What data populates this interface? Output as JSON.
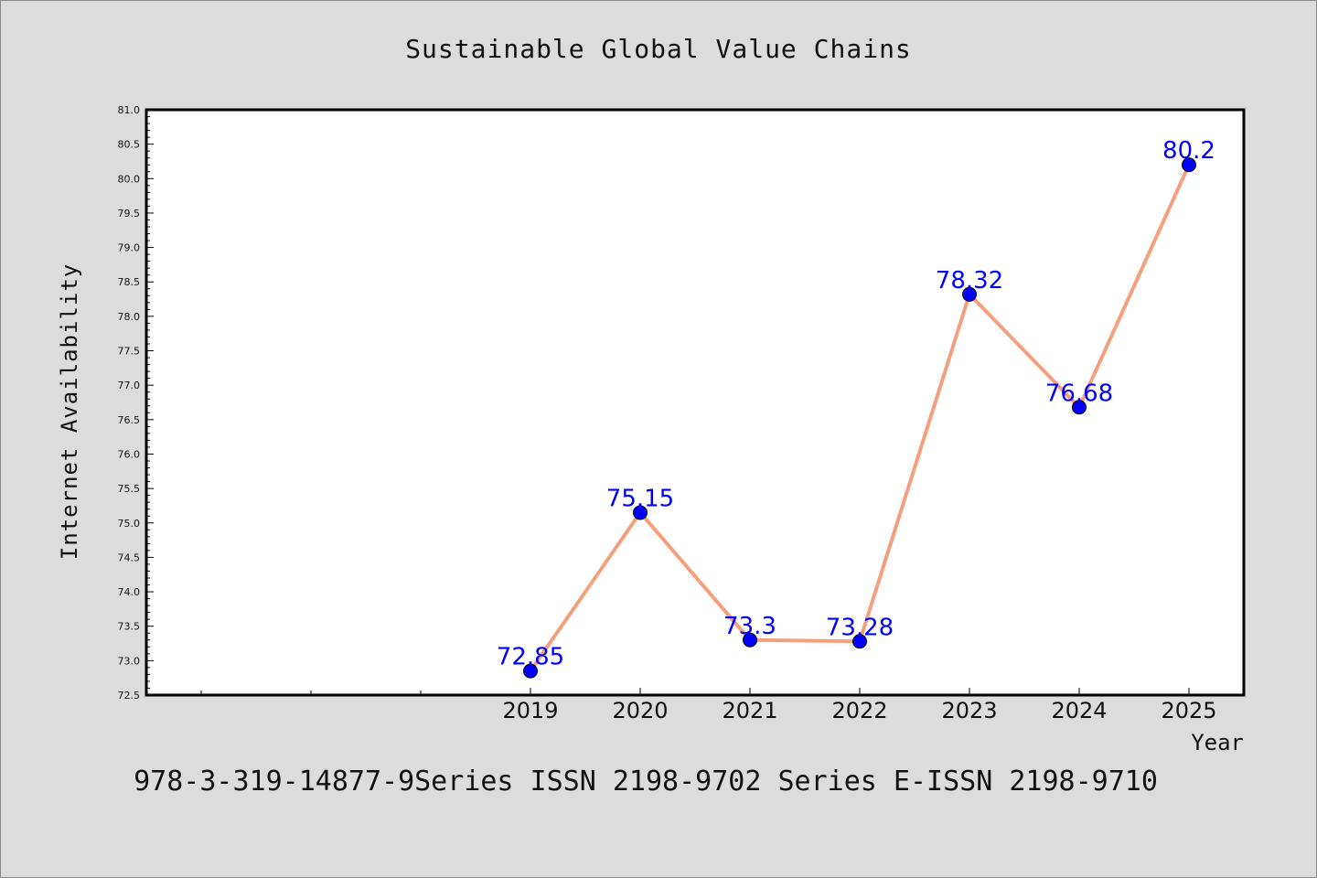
{
  "chart_data": {
    "type": "line",
    "title": "Sustainable Global Value Chains",
    "xlabel": "Year",
    "ylabel": "Internet Availability",
    "x": [
      2019,
      2020,
      2021,
      2022,
      2023,
      2024,
      2025
    ],
    "x_tick_labels": [
      "2019",
      "2020",
      "2021",
      "2022",
      "2023",
      "2024",
      "2025"
    ],
    "values": [
      72.85,
      75.15,
      73.3,
      73.28,
      78.32,
      76.68,
      80.2
    ],
    "data_labels": [
      "72.85",
      "75.15",
      "73.3",
      "73.28",
      "78.32",
      "76.68",
      "80.2"
    ],
    "xlim": [
      2015.5,
      2025.5
    ],
    "ylim": [
      72.5,
      81.0
    ],
    "y_ticks": [
      "72.5",
      "73.0",
      "73.5",
      "74.0",
      "74.5",
      "75.0",
      "75.5",
      "76.0",
      "76.5",
      "77.0",
      "77.5",
      "78.0",
      "78.5",
      "79.0",
      "79.5",
      "80.0",
      "80.5",
      "81.0"
    ],
    "grid": false,
    "legend": "none",
    "line_color": "#f4a07f",
    "marker_color": "#0000ff",
    "label_color": "#0000ff"
  },
  "footer": "978-3-319-14877-9Series ISSN 2198-9702 Series E-ISSN 2198-9710"
}
